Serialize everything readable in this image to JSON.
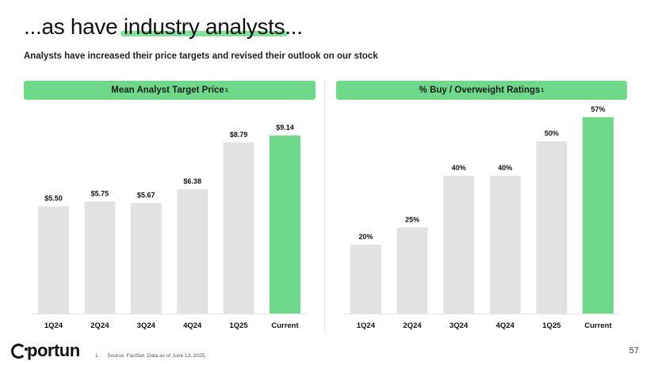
{
  "header": {
    "title_prefix": "...as have ",
    "title_highlight": "industry analysts",
    "title_suffix": "...",
    "subtitle": "Analysts have increased their price targets and revised their outlook on our stock"
  },
  "footer": {
    "logo_text": "portun",
    "footnote_number": "1.",
    "footnote_text": "Source: FactSet. Data as of June 13, 2025.",
    "page_number": "57"
  },
  "colors": {
    "accent": "#6fd98a",
    "bar_gray": "#e2e2e2",
    "text": "#111111"
  },
  "chart_data": [
    {
      "type": "bar",
      "title": "Mean Analyst Target Price",
      "title_superscript": "1",
      "categories": [
        "1Q24",
        "2Q24",
        "3Q24",
        "4Q24",
        "1Q25",
        "Current"
      ],
      "values": [
        5.5,
        5.75,
        5.67,
        6.38,
        8.79,
        9.14
      ],
      "labels": [
        "$5.50",
        "$5.75",
        "$5.67",
        "$6.38",
        "$8.79",
        "$9.14"
      ],
      "highlight_index": 5,
      "ylim": [
        0,
        10
      ],
      "grid": false,
      "xlabel": "",
      "ylabel": ""
    },
    {
      "type": "bar",
      "title": "% Buy / Overweight Ratings",
      "title_superscript": "1",
      "categories": [
        "1Q24",
        "2Q24",
        "3Q24",
        "4Q24",
        "1Q25",
        "Current"
      ],
      "values": [
        20,
        25,
        40,
        40,
        50,
        57
      ],
      "labels": [
        "20%",
        "25%",
        "40%",
        "40%",
        "50%",
        "57%"
      ],
      "highlight_index": 5,
      "ylim": [
        0,
        60
      ],
      "grid": false,
      "xlabel": "",
      "ylabel": ""
    }
  ]
}
